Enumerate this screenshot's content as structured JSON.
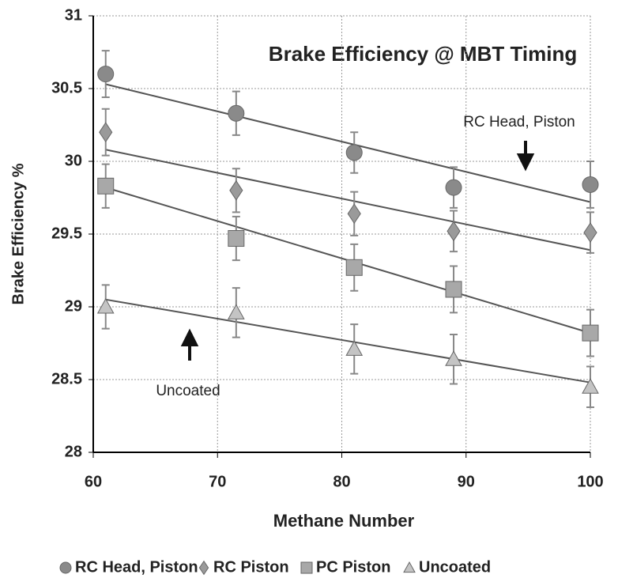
{
  "chart_data": {
    "type": "scatter",
    "title": "Brake Efficiency @ MBT Timing",
    "xlabel": "Methane Number",
    "ylabel": "Brake Efficiency %",
    "xlim": [
      60,
      100
    ],
    "xticks": [
      60,
      70,
      80,
      90,
      100
    ],
    "ylim": [
      28,
      31
    ],
    "yticks": [
      28,
      28.5,
      29,
      29.5,
      30,
      30.5,
      31
    ],
    "grid": true,
    "legend": "bottom",
    "annotations": [
      "RC Head, Piston",
      "Uncoated"
    ],
    "x": [
      61,
      71.5,
      81,
      89,
      100
    ],
    "trend_x": [
      61,
      100
    ],
    "series": [
      {
        "name": "RC Head, Piston",
        "color": "#8a8a8a",
        "marker": "circle",
        "values": [
          30.6,
          30.33,
          30.06,
          29.82,
          29.84
        ],
        "errors": [
          0.16,
          0.15,
          0.14,
          0.14,
          0.16
        ],
        "trend": [
          30.53,
          29.72
        ]
      },
      {
        "name": "RC Piston",
        "color": "#9a9a9a",
        "marker": "diamond",
        "values": [
          30.2,
          29.8,
          29.64,
          29.52,
          29.51
        ],
        "errors": [
          0.16,
          0.15,
          0.15,
          0.14,
          0.14
        ],
        "trend": [
          30.08,
          29.39
        ]
      },
      {
        "name": "PC Piston",
        "color": "#a8a8a8",
        "marker": "square",
        "values": [
          29.83,
          29.47,
          29.27,
          29.12,
          28.82
        ],
        "errors": [
          0.15,
          0.15,
          0.16,
          0.16,
          0.16
        ],
        "trend": [
          29.82,
          28.82
        ]
      },
      {
        "name": "Uncoated",
        "color": "#c4c4c4",
        "marker": "triangle",
        "values": [
          29.0,
          28.96,
          28.71,
          28.64,
          28.45
        ],
        "errors": [
          0.15,
          0.17,
          0.17,
          0.17,
          0.14
        ],
        "trend": [
          29.05,
          28.48
        ]
      }
    ]
  }
}
